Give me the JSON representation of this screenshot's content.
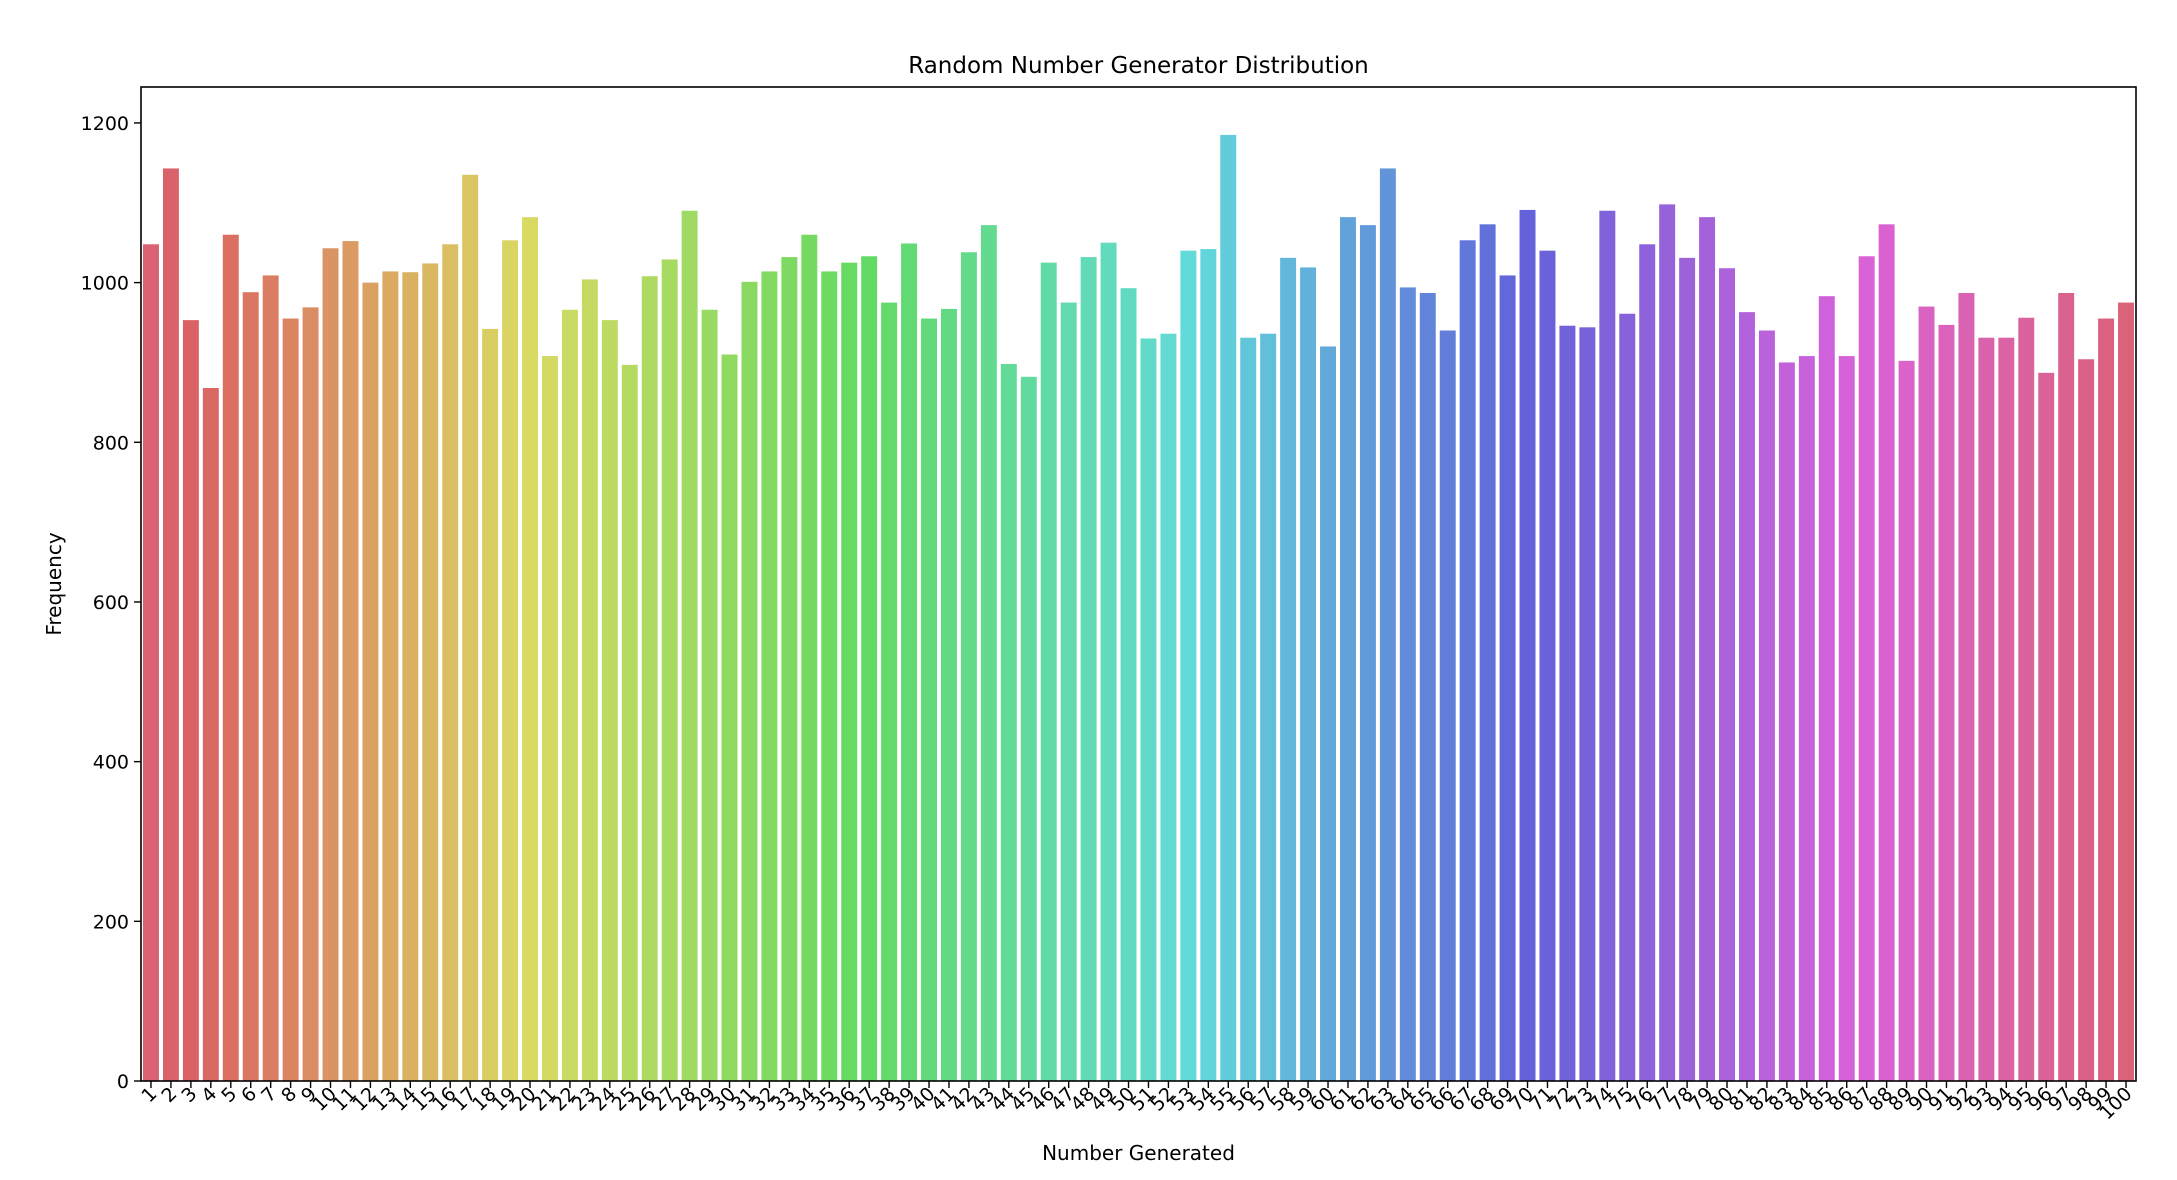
{
  "chart_data": {
    "type": "bar",
    "title": "Random Number Generator Distribution",
    "xlabel": "Number Generated",
    "ylabel": "Frequency",
    "ylim": [
      0,
      1245
    ],
    "yticks": [
      0,
      200,
      400,
      600,
      800,
      1000,
      1200
    ],
    "grid": false,
    "categories": [
      "1",
      "2",
      "3",
      "4",
      "5",
      "6",
      "7",
      "8",
      "9",
      "10",
      "11",
      "12",
      "13",
      "14",
      "15",
      "16",
      "17",
      "18",
      "19",
      "20",
      "21",
      "22",
      "23",
      "24",
      "25",
      "26",
      "27",
      "28",
      "29",
      "30",
      "31",
      "32",
      "33",
      "34",
      "35",
      "36",
      "37",
      "38",
      "39",
      "40",
      "41",
      "42",
      "43",
      "44",
      "45",
      "46",
      "47",
      "48",
      "49",
      "50",
      "51",
      "52",
      "53",
      "54",
      "55",
      "56",
      "57",
      "58",
      "59",
      "60",
      "61",
      "62",
      "63",
      "64",
      "65",
      "66",
      "67",
      "68",
      "69",
      "70",
      "71",
      "72",
      "73",
      "74",
      "75",
      "76",
      "77",
      "78",
      "79",
      "80",
      "81",
      "82",
      "83",
      "84",
      "85",
      "86",
      "87",
      "88",
      "89",
      "90",
      "91",
      "92",
      "93",
      "94",
      "95",
      "96",
      "97",
      "98",
      "99",
      "100"
    ],
    "values": [
      1048,
      1143,
      953,
      868,
      1060,
      988,
      1009,
      955,
      969,
      1043,
      1052,
      1000,
      1014,
      1013,
      1024,
      1048,
      1135,
      942,
      1053,
      1082,
      908,
      966,
      1004,
      953,
      897,
      1008,
      1029,
      1090,
      966,
      910,
      1001,
      1014,
      1032,
      1060,
      1014,
      1025,
      1033,
      975,
      1049,
      955,
      967,
      1038,
      1072,
      898,
      882,
      1025,
      975,
      1032,
      1050,
      993,
      930,
      936,
      1040,
      1042,
      1185,
      931,
      936,
      1031,
      1019,
      920,
      1082,
      1072,
      1143,
      994,
      987,
      940,
      1053,
      1073,
      1009,
      1091,
      1040,
      946,
      944,
      1090,
      961,
      1048,
      1098,
      1031,
      1082,
      1018,
      963,
      940,
      900,
      908,
      983,
      908,
      1033,
      1073,
      902,
      970,
      947,
      987,
      931,
      931,
      956,
      887,
      987,
      904,
      955,
      975
    ]
  }
}
